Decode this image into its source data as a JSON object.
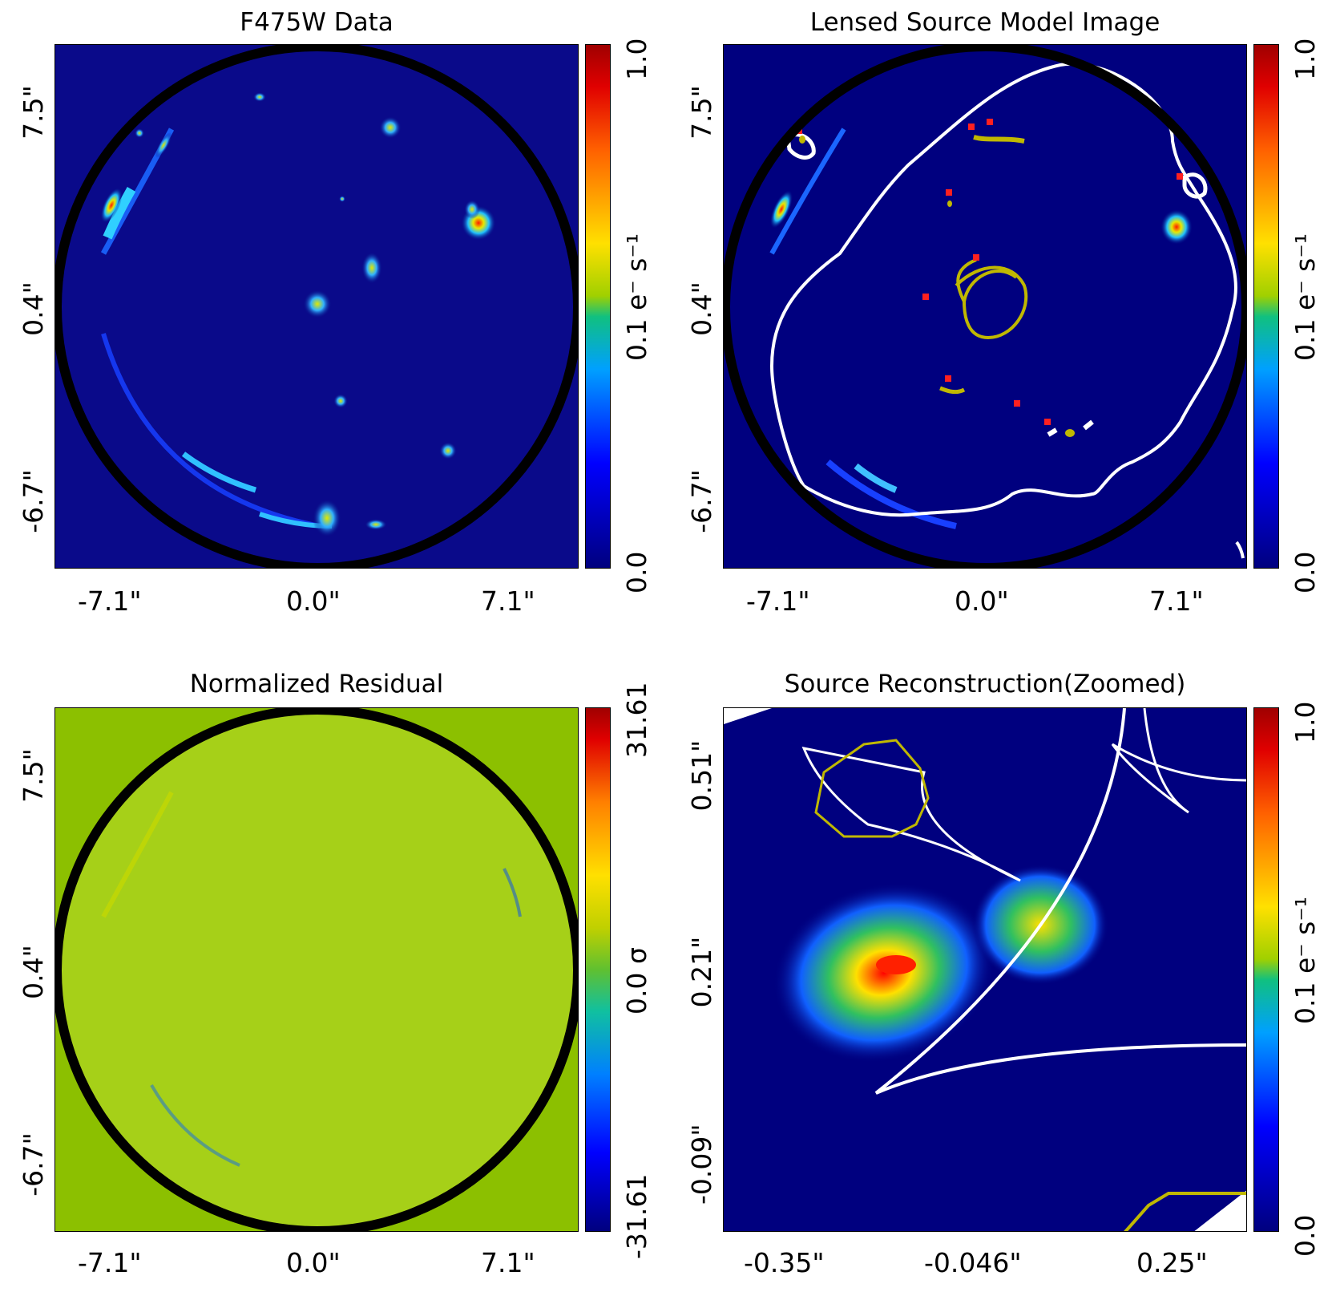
{
  "panels": [
    {
      "title": "F475W Data",
      "xticks": [
        "-7.1\"",
        "0.0\"",
        "7.1\""
      ],
      "yticks": [
        "7.5\"",
        "0.4\"",
        "-6.7\""
      ],
      "colorbar": {
        "ticks": [
          "1.0",
          "0.1 e⁻ s⁻¹",
          "0.0"
        ],
        "colormap": "jet",
        "scale": "log"
      }
    },
    {
      "title": "Lensed Source Model Image",
      "xticks": [
        "-7.1\"",
        "0.0\"",
        "7.1\""
      ],
      "yticks": [
        "7.5\"",
        "0.4\"",
        "-6.7\""
      ],
      "colorbar": {
        "ticks": [
          "1.0",
          "0.1 e⁻ s⁻¹",
          "0.0"
        ],
        "colormap": "jet",
        "scale": "log"
      }
    },
    {
      "title": "Normalized Residual",
      "xticks": [
        "-7.1\"",
        "0.0\"",
        "7.1\""
      ],
      "yticks": [
        "7.5\"",
        "0.4\"",
        "-6.7\""
      ],
      "colorbar": {
        "ticks": [
          "31.61",
          "0.0 σ",
          "-31.61"
        ],
        "colormap": "jet",
        "scale": "linear"
      }
    },
    {
      "title": "Source Reconstruction(Zoomed)",
      "xticks": [
        "-0.35\"",
        "-0.046\"",
        "0.25\""
      ],
      "yticks": [
        "0.51\"",
        "0.21\"",
        "-0.09\""
      ],
      "colorbar": {
        "ticks": [
          "1.0",
          "0.1 e⁻ s⁻¹",
          "0.0"
        ],
        "colormap": "jet",
        "scale": "log"
      }
    }
  ],
  "colors": {
    "background_low": "#00007f",
    "residual_background": "#8cc000",
    "mask_circle": "#000000",
    "critical_curve": "#ffffff",
    "caustic": "#c0b800",
    "multiple_image_marker": "#ff2020"
  },
  "chart_data": [
    {
      "type": "heatmap",
      "title": "F475W Data",
      "xlim": [
        -8.0,
        8.0
      ],
      "ylim": [
        -8.8,
        9.5
      ]
    },
    {
      "type": "heatmap",
      "title": "Lensed Source Model Image",
      "xlim": [
        -8.0,
        8.0
      ],
      "ylim": [
        -8.8,
        9.5
      ]
    },
    {
      "type": "heatmap",
      "title": "Normalized Residual",
      "xlim": [
        -8.0,
        8.0
      ],
      "ylim": [
        -8.8,
        9.5
      ],
      "clim": [
        -31.61,
        31.61
      ]
    },
    {
      "type": "heatmap",
      "title": "Source Reconstruction(Zoomed)",
      "xlim": [
        -0.45,
        0.35
      ],
      "ylim": [
        -0.19,
        0.61
      ]
    }
  ]
}
